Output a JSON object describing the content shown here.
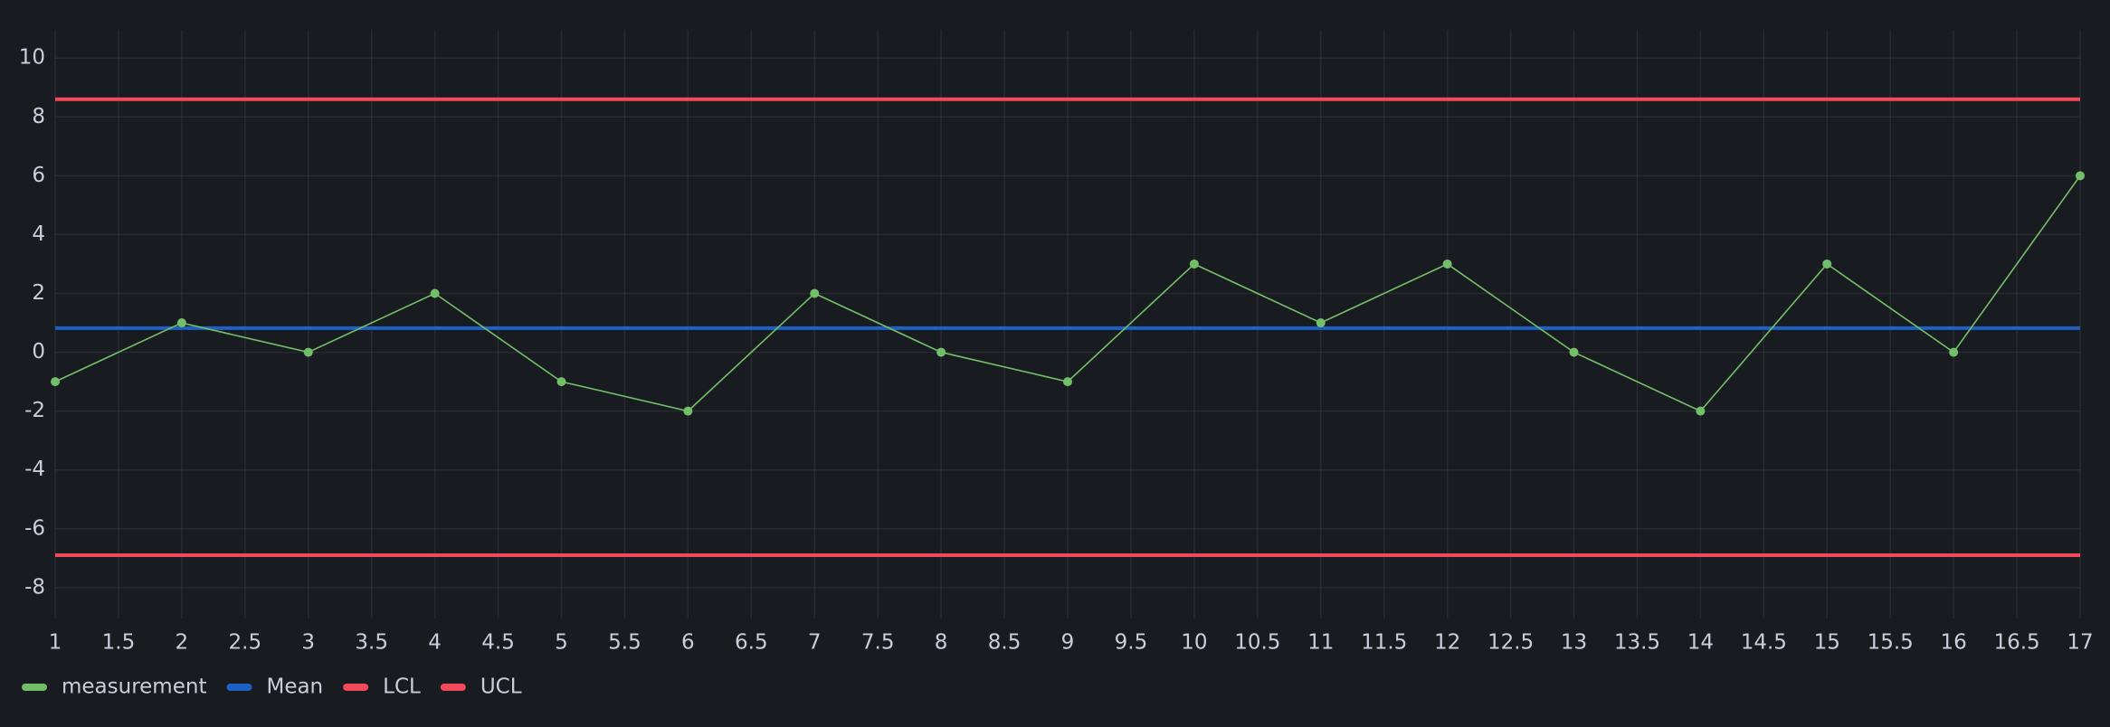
{
  "chart_data": {
    "type": "line",
    "x": [
      1,
      2,
      3,
      4,
      5,
      6,
      7,
      8,
      9,
      10,
      11,
      12,
      13,
      14,
      15,
      16,
      17
    ],
    "series": [
      {
        "name": "measurement",
        "color": "#73bf69",
        "points": true,
        "values": [
          -1,
          1,
          0,
          2,
          -1,
          -2,
          2,
          0,
          -1,
          3,
          1,
          3,
          0,
          -2,
          3,
          0,
          6
        ]
      },
      {
        "name": "Mean",
        "color": "#1f60c4",
        "points": false,
        "values": [
          0.82,
          0.82,
          0.82,
          0.82,
          0.82,
          0.82,
          0.82,
          0.82,
          0.82,
          0.82,
          0.82,
          0.82,
          0.82,
          0.82,
          0.82,
          0.82,
          0.82
        ]
      },
      {
        "name": "LCL",
        "color": "#f2495c",
        "points": false,
        "values": [
          -6.9,
          -6.9,
          -6.9,
          -6.9,
          -6.9,
          -6.9,
          -6.9,
          -6.9,
          -6.9,
          -6.9,
          -6.9,
          -6.9,
          -6.9,
          -6.9,
          -6.9,
          -6.9,
          -6.9
        ]
      },
      {
        "name": "UCL",
        "color": "#f2495c",
        "points": false,
        "values": [
          8.6,
          8.6,
          8.6,
          8.6,
          8.6,
          8.6,
          8.6,
          8.6,
          8.6,
          8.6,
          8.6,
          8.6,
          8.6,
          8.6,
          8.6,
          8.6,
          8.6
        ]
      }
    ],
    "xlim": [
      1,
      17
    ],
    "xticks": [
      1,
      1.5,
      2,
      2.5,
      3,
      3.5,
      4,
      4.5,
      5,
      5.5,
      6,
      6.5,
      7,
      7.5,
      8,
      8.5,
      9,
      9.5,
      10,
      10.5,
      11,
      11.5,
      12,
      12.5,
      13,
      13.5,
      14,
      14.5,
      15,
      15.5,
      16,
      16.5,
      17
    ],
    "ylim": [
      -9.05,
      10.96
    ],
    "yticks": [
      -8,
      -6,
      -4,
      -2,
      0,
      2,
      4,
      6,
      8,
      10
    ],
    "grid": true,
    "legend": "bottom-left"
  }
}
